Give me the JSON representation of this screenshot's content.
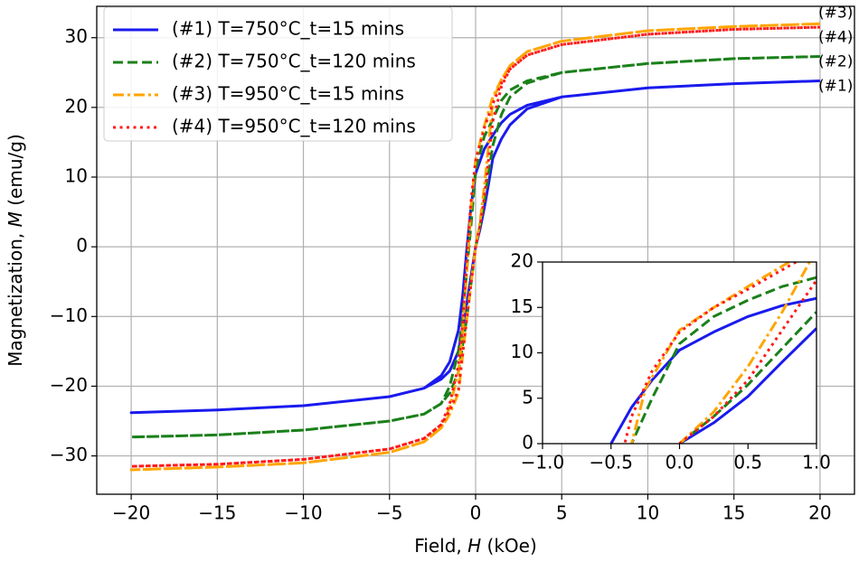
{
  "chart_data": [
    {
      "type": "line",
      "xlabel": [
        "Field, ",
        "H",
        " (kOe)"
      ],
      "ylabel": [
        "Magnetization, ",
        "M",
        " (emu/g)"
      ],
      "xlim": [
        -22,
        22
      ],
      "ylim": [
        -35.5,
        34.5
      ],
      "xticks": [
        {
          "value": -20,
          "label": "−20"
        },
        {
          "value": -15,
          "label": "−15"
        },
        {
          "value": -10,
          "label": "−10"
        },
        {
          "value": -5,
          "label": "−5"
        },
        0,
        5,
        10,
        15,
        20
      ],
      "yticks": [
        {
          "value": -30,
          "label": "−30"
        },
        {
          "value": -20,
          "label": "−20"
        },
        {
          "value": -10,
          "label": "−10"
        },
        0,
        10,
        20,
        30
      ],
      "grid": true,
      "legend": "upper left",
      "series": [
        {
          "name": "(#1) T=750°C_t=15 mins",
          "end_label": "(#1)",
          "color": "#1a1aee",
          "linestyle": "solid",
          "x": [
            20,
            15,
            10,
            5,
            3,
            2,
            1.5,
            1,
            0.5,
            0,
            -0.25,
            -0.5,
            -0.75,
            -1,
            -1.5,
            -2,
            -3,
            -5,
            -10,
            -15,
            -20,
            -15,
            -10,
            -5,
            -3,
            -2,
            -1.5,
            -1,
            -0.5,
            -0.25,
            0,
            0.25,
            0.5,
            0.75,
            1,
            1.5,
            2,
            3,
            5,
            10,
            15,
            20
          ],
          "values": [
            23.8,
            23.4,
            22.8,
            21.5,
            20.3,
            19,
            17.8,
            16,
            14,
            10.5,
            6,
            0,
            -7,
            -12,
            -16.5,
            -18.5,
            -20.3,
            -21.5,
            -22.8,
            -23.4,
            -23.8,
            -23.4,
            -22.8,
            -21.5,
            -20.3,
            -19,
            -17.8,
            -15,
            -8,
            -4,
            0,
            2.5,
            5.5,
            9,
            12.7,
            15.5,
            17.5,
            19.8,
            21.5,
            22.8,
            23.4,
            23.8
          ]
        },
        {
          "name": "(#2) T=750°C_t=120 mins",
          "end_label": "(#2)",
          "color": "#1a801a",
          "linestyle": "dashed",
          "x": [
            20,
            15,
            10,
            5,
            3,
            2,
            1.5,
            1,
            0.5,
            0,
            -0.25,
            -0.5,
            -0.75,
            -1,
            -1.5,
            -2,
            -3,
            -5,
            -10,
            -15,
            -20,
            -15,
            -10,
            -5,
            -3,
            -2,
            -1.5,
            -1,
            -0.5,
            -0.25,
            0,
            0.25,
            0.5,
            0.75,
            1,
            1.5,
            2,
            3,
            5,
            10,
            15,
            20
          ],
          "values": [
            27.3,
            27,
            26.3,
            25,
            23.8,
            22.5,
            21,
            18.3,
            15.8,
            11,
            3.5,
            -3,
            -10,
            -15,
            -20,
            -22.5,
            -24,
            -25,
            -26.3,
            -27,
            -27.3,
            -27,
            -26.3,
            -25,
            -24,
            -22.5,
            -21,
            -18,
            -10,
            -5,
            0,
            3,
            6.5,
            10.5,
            14.5,
            19,
            21.5,
            23.5,
            25,
            26.3,
            27,
            27.3
          ]
        },
        {
          "name": "(#3) T=950°C_t=15 mins",
          "end_label": "(#3)",
          "color": "#ffa500",
          "linestyle": "dashdot",
          "x": [
            20,
            15,
            10,
            5,
            3,
            2,
            1.5,
            1,
            0.5,
            0,
            -0.25,
            -0.5,
            -0.75,
            -1,
            -1.5,
            -2,
            -3,
            -5,
            -10,
            -15,
            -20,
            -15,
            -10,
            -5,
            -3,
            -2,
            -1.5,
            -1,
            -0.5,
            -0.25,
            0,
            0.25,
            0.5,
            0.75,
            1,
            1.5,
            2,
            3,
            5,
            10,
            15,
            20
          ],
          "values": [
            32,
            31.6,
            31,
            29.5,
            28,
            26,
            24,
            21.5,
            17.3,
            12.5,
            6,
            -3,
            -12,
            -18,
            -23,
            -26,
            -28,
            -29.5,
            -31,
            -31.6,
            -32,
            -31.6,
            -31,
            -29.5,
            -28,
            -26,
            -24,
            -21,
            -10,
            -5,
            0,
            3.5,
            8.5,
            14.5,
            21,
            24,
            26,
            28,
            29.5,
            31,
            31.6,
            32
          ]
        },
        {
          "name": "(#4) T=950°C_t=120 mins",
          "end_label": "(#4)",
          "color": "#ff1a1a",
          "linestyle": "dotted",
          "x": [
            20,
            15,
            10,
            5,
            3,
            2,
            1.5,
            1,
            0.5,
            0,
            -0.25,
            -0.5,
            -0.75,
            -1,
            -1.5,
            -2,
            -3,
            -5,
            -10,
            -15,
            -20,
            -15,
            -10,
            -5,
            -3,
            -2,
            -1.5,
            -1,
            -0.5,
            -0.25,
            0,
            0.25,
            0.5,
            0.75,
            1,
            1.5,
            2,
            3,
            5,
            10,
            15,
            20
          ],
          "values": [
            31.5,
            31.2,
            30.5,
            29,
            27.5,
            25.5,
            23.5,
            20.5,
            17,
            12.3,
            7,
            -1,
            -11,
            -17,
            -22.5,
            -25.5,
            -27.5,
            -29,
            -30.5,
            -31.2,
            -31.5,
            -31.2,
            -30.5,
            -29,
            -27.5,
            -25.5,
            -23.5,
            -20.5,
            -10,
            -5,
            0,
            3,
            7,
            12.5,
            18,
            23,
            25.5,
            27.5,
            29,
            30.5,
            31.2,
            31.5
          ]
        }
      ]
    },
    {
      "type": "line",
      "xlim": [
        -1,
        1
      ],
      "ylim": [
        0,
        20
      ],
      "xticks": [
        {
          "value": -1,
          "label": "−1.0"
        },
        {
          "value": -0.5,
          "label": "−0.5"
        },
        {
          "value": 0,
          "label": "0.0"
        },
        {
          "value": 0.5,
          "label": "0.5"
        },
        {
          "value": 1,
          "label": "1.0"
        }
      ],
      "yticks": [
        0,
        5,
        10,
        15,
        20
      ],
      "grid": false,
      "series": [
        {
          "color": "#1a1aee",
          "linestyle": "solid",
          "x": [
            1,
            0.75,
            0.5,
            0.25,
            0,
            -0.2,
            -0.35,
            -0.5,
            null,
            0,
            0.25,
            0.5,
            0.75,
            1
          ],
          "values": [
            16,
            15.2,
            14,
            12.3,
            10.3,
            7,
            4,
            0,
            null,
            0,
            2.3,
            5.2,
            9,
            12.7
          ]
        },
        {
          "color": "#1a801a",
          "linestyle": "dashed",
          "x": [
            1,
            0.75,
            0.5,
            0.25,
            0,
            -0.1,
            -0.2,
            -0.35,
            null,
            0,
            0.25,
            0.5,
            0.75,
            1
          ],
          "values": [
            18.3,
            17.3,
            15.8,
            14,
            11,
            8,
            5,
            0,
            null,
            0,
            3,
            6.5,
            10.5,
            14.5
          ]
        },
        {
          "color": "#ffa500",
          "linestyle": "dashdot",
          "x": [
            0.8,
            0.5,
            0.25,
            0,
            -0.25,
            -0.35,
            null,
            0,
            0.25,
            0.5,
            0.75,
            0.95
          ],
          "values": [
            20,
            17.3,
            15,
            12.5,
            6,
            0,
            null,
            0,
            3.5,
            8.5,
            14.5,
            20
          ]
        },
        {
          "color": "#ff1a1a",
          "linestyle": "dotted",
          "x": [
            0.85,
            0.5,
            0.25,
            0,
            -0.2,
            -0.35,
            -0.4,
            null,
            0,
            0.25,
            0.5,
            0.75,
            1
          ],
          "values": [
            20,
            17,
            15,
            12.3,
            8,
            3,
            0,
            null,
            0,
            3,
            7,
            12.5,
            18
          ]
        }
      ]
    }
  ]
}
